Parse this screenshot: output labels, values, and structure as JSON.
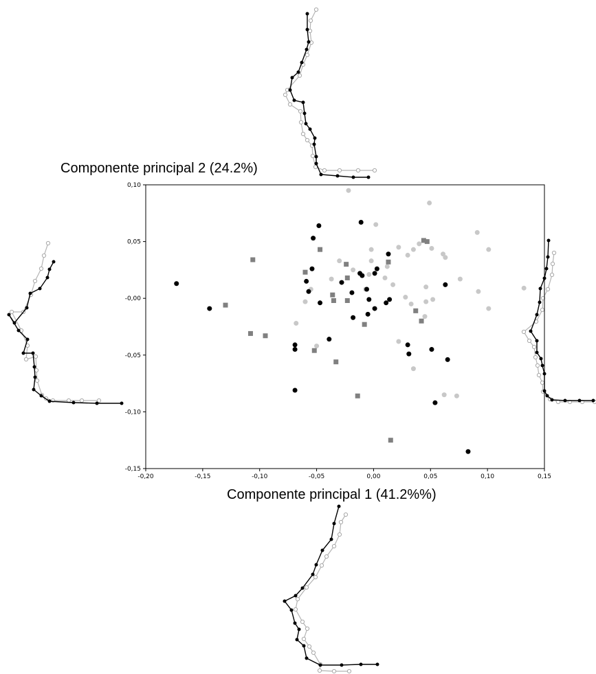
{
  "chart_data": {
    "type": "scatter",
    "title": "",
    "xlabel": "Componente principal 1 (41.2%%)",
    "ylabel": "Componente principal 2 (24.2%)",
    "xlim": [
      -0.2,
      0.15
    ],
    "ylim": [
      -0.15,
      0.1
    ],
    "xticks": [
      "-0,20",
      "-0,15",
      "-0,10",
      "-0,05",
      "0,00",
      "0,05",
      "0,10",
      "0,15"
    ],
    "yticks": [
      "0,10",
      "0,05",
      "-0,00",
      "-0,05",
      "-0,10",
      "-0,15"
    ],
    "xtick_values": [
      -0.2,
      -0.15,
      -0.1,
      -0.05,
      0.0,
      0.05,
      0.1,
      0.15
    ],
    "ytick_values": [
      0.1,
      0.05,
      0.0,
      -0.05,
      -0.1,
      -0.15
    ],
    "grid": false,
    "colors": {
      "black": "#000000",
      "dark_grey": "#808080",
      "light_grey": "#c8c8c8"
    },
    "series": [
      {
        "marker": "circle",
        "color": "#000000",
        "points": [
          [
            -0.173,
            0.013
          ],
          [
            -0.144,
            -0.009
          ],
          [
            -0.069,
            -0.041
          ],
          [
            -0.069,
            -0.045
          ],
          [
            -0.069,
            -0.081
          ],
          [
            -0.053,
            0.053
          ],
          [
            -0.048,
            0.064
          ],
          [
            -0.059,
            0.015
          ],
          [
            -0.054,
            0.026
          ],
          [
            -0.057,
            0.006
          ],
          [
            -0.047,
            -0.004
          ],
          [
            -0.039,
            -0.036
          ],
          [
            -0.028,
            0.014
          ],
          [
            -0.019,
            0.005
          ],
          [
            -0.018,
            -0.017
          ],
          [
            -0.012,
            0.022
          ],
          [
            -0.01,
            0.02
          ],
          [
            -0.011,
            0.067
          ],
          [
            -0.006,
            0.008
          ],
          [
            -0.004,
            -0.001
          ],
          [
            -0.005,
            -0.014
          ],
          [
            0.001,
            -0.009
          ],
          [
            0.001,
            0.022
          ],
          [
            0.003,
            0.026
          ],
          [
            0.011,
            -0.004
          ],
          [
            0.013,
            0.039
          ],
          [
            0.014,
            -0.001
          ],
          [
            0.03,
            -0.041
          ],
          [
            0.031,
            -0.049
          ],
          [
            0.051,
            -0.045
          ],
          [
            0.054,
            -0.092
          ],
          [
            0.063,
            0.012
          ],
          [
            0.065,
            -0.054
          ],
          [
            0.083,
            -0.135
          ]
        ]
      },
      {
        "marker": "square",
        "color": "#808080",
        "points": [
          [
            -0.13,
            -0.006
          ],
          [
            -0.108,
            -0.031
          ],
          [
            -0.106,
            0.034
          ],
          [
            -0.095,
            -0.033
          ],
          [
            -0.06,
            0.023
          ],
          [
            -0.052,
            -0.046
          ],
          [
            -0.047,
            0.043
          ],
          [
            -0.036,
            0.003
          ],
          [
            -0.035,
            -0.002
          ],
          [
            -0.033,
            -0.056
          ],
          [
            -0.024,
            0.03
          ],
          [
            -0.023,
            0.018
          ],
          [
            -0.023,
            -0.002
          ],
          [
            -0.014,
            -0.086
          ],
          [
            -0.008,
            -0.023
          ],
          [
            0.013,
            0.032
          ],
          [
            0.015,
            -0.125
          ],
          [
            0.037,
            -0.011
          ],
          [
            0.042,
            -0.02
          ],
          [
            0.044,
            0.051
          ],
          [
            0.047,
            0.05
          ]
        ]
      },
      {
        "marker": "circle",
        "color": "#c8c8c8",
        "points": [
          [
            -0.068,
            -0.022
          ],
          [
            -0.06,
            -0.003
          ],
          [
            -0.055,
            0.008
          ],
          [
            -0.05,
            -0.042
          ],
          [
            -0.037,
            0.017
          ],
          [
            -0.03,
            0.033
          ],
          [
            -0.022,
            0.095
          ],
          [
            -0.018,
            0.025
          ],
          [
            -0.007,
            0.008
          ],
          [
            -0.004,
            0.021
          ],
          [
            -0.002,
            0.033
          ],
          [
            -0.002,
            0.043
          ],
          [
            0.002,
            0.065
          ],
          [
            0.01,
            0.018
          ],
          [
            0.012,
            0.028
          ],
          [
            0.017,
            0.012
          ],
          [
            0.022,
            0.045
          ],
          [
            0.022,
            -0.038
          ],
          [
            0.028,
            0.001
          ],
          [
            0.03,
            0.038
          ],
          [
            0.033,
            -0.005
          ],
          [
            0.035,
            0.043
          ],
          [
            0.035,
            -0.062
          ],
          [
            0.04,
            0.048
          ],
          [
            0.045,
            -0.016
          ],
          [
            0.046,
            0.01
          ],
          [
            0.046,
            -0.003
          ],
          [
            0.049,
            0.084
          ],
          [
            0.051,
            0.044
          ],
          [
            0.052,
            -0.001
          ],
          [
            0.061,
            0.039
          ],
          [
            0.062,
            -0.085
          ],
          [
            0.063,
            0.036
          ],
          [
            0.073,
            -0.086
          ],
          [
            0.076,
            0.017
          ],
          [
            0.091,
            0.058
          ],
          [
            0.092,
            0.006
          ],
          [
            0.101,
            0.043
          ],
          [
            0.101,
            -0.009
          ],
          [
            0.132,
            0.009
          ]
        ]
      }
    ]
  },
  "shape_outlines": {
    "top": {
      "black": [
        [
          447,
          20
        ],
        [
          447,
          43
        ],
        [
          449,
          61
        ],
        [
          446,
          72
        ],
        [
          439,
          91
        ],
        [
          434,
          105
        ],
        [
          425,
          113
        ],
        [
          422,
          131
        ],
        [
          428,
          146
        ],
        [
          441,
          149
        ],
        [
          443,
          165
        ],
        [
          445,
          180
        ],
        [
          451,
          188
        ],
        [
          458,
          201
        ],
        [
          457,
          210
        ],
        [
          460,
          228
        ],
        [
          460,
          238
        ],
        [
          467,
          254
        ],
        [
          491,
          256
        ],
        [
          514,
          258
        ],
        [
          536,
          258
        ]
      ],
      "grey": [
        [
          460,
          14
        ],
        [
          452,
          30
        ],
        [
          451,
          45
        ],
        [
          453,
          62
        ],
        [
          447,
          80
        ],
        [
          441,
          94
        ],
        [
          436,
          110
        ],
        [
          418,
          131
        ],
        [
          415,
          138
        ],
        [
          422,
          152
        ],
        [
          437,
          162
        ],
        [
          438,
          178
        ],
        [
          441,
          195
        ],
        [
          447,
          204
        ],
        [
          454,
          212
        ],
        [
          455,
          227
        ],
        [
          459,
          243
        ],
        [
          472,
          248
        ],
        [
          494,
          248
        ],
        [
          521,
          248
        ],
        [
          545,
          248
        ]
      ]
    },
    "left": {
      "black": [
        [
          78,
          381
        ],
        [
          72,
          392
        ],
        [
          69,
          404
        ],
        [
          58,
          420
        ],
        [
          44,
          427
        ],
        [
          39,
          448
        ],
        [
          21,
          470
        ],
        [
          13,
          458
        ],
        [
          27,
          481
        ],
        [
          40,
          494
        ],
        [
          34,
          514
        ],
        [
          48,
          514
        ],
        [
          50,
          534
        ],
        [
          51,
          549
        ],
        [
          49,
          567
        ],
        [
          60,
          576
        ],
        [
          72,
          584
        ],
        [
          107,
          586
        ],
        [
          141,
          587
        ],
        [
          177,
          587
        ]
      ],
      "grey": [
        [
          70,
          354
        ],
        [
          64,
          372
        ],
        [
          60,
          391
        ],
        [
          51,
          409
        ],
        [
          45,
          429
        ],
        [
          34,
          454
        ],
        [
          17,
          454
        ],
        [
          31,
          481
        ],
        [
          40,
          503
        ],
        [
          38,
          523
        ],
        [
          52,
          519
        ],
        [
          53,
          539
        ],
        [
          54,
          554
        ],
        [
          61,
          575
        ],
        [
          67,
          580
        ],
        [
          77,
          583
        ],
        [
          100,
          583
        ],
        [
          119,
          583
        ],
        [
          144,
          583
        ]
      ]
    },
    "right": {
      "black": [
        [
          798,
          350
        ],
        [
          797,
          374
        ],
        [
          795,
          391
        ],
        [
          792,
          405
        ],
        [
          786,
          420
        ],
        [
          785,
          440
        ],
        [
          781,
          458
        ],
        [
          772,
          482
        ],
        [
          781,
          496
        ],
        [
          781,
          513
        ],
        [
          787,
          522
        ],
        [
          789,
          532
        ],
        [
          792,
          544
        ],
        [
          792,
          569
        ],
        [
          796,
          576
        ],
        [
          803,
          582
        ],
        [
          822,
          583
        ],
        [
          843,
          583
        ],
        [
          863,
          583
        ]
      ],
      "grey": [
        [
          806,
          368
        ],
        [
          804,
          384
        ],
        [
          803,
          400
        ],
        [
          797,
          421
        ],
        [
          790,
          434
        ],
        [
          789,
          451
        ],
        [
          780,
          468
        ],
        [
          762,
          483
        ],
        [
          770,
          496
        ],
        [
          777,
          505
        ],
        [
          779,
          520
        ],
        [
          782,
          532
        ],
        [
          784,
          546
        ],
        [
          789,
          557
        ],
        [
          790,
          570
        ],
        [
          800,
          581
        ],
        [
          812,
          585
        ],
        [
          829,
          585
        ],
        [
          847,
          585
        ],
        [
          865,
          585
        ]
      ]
    },
    "bottom": {
      "black": [
        [
          493,
          737
        ],
        [
          486,
          762
        ],
        [
          482,
          785
        ],
        [
          469,
          801
        ],
        [
          460,
          822
        ],
        [
          455,
          836
        ],
        [
          440,
          856
        ],
        [
          430,
          867
        ],
        [
          414,
          875
        ],
        [
          424,
          888
        ],
        [
          429,
          907
        ],
        [
          435,
          916
        ],
        [
          432,
          931
        ],
        [
          442,
          940
        ],
        [
          446,
          958
        ],
        [
          466,
          968
        ],
        [
          497,
          968
        ],
        [
          525,
          967
        ],
        [
          549,
          967
        ]
      ],
      "grey": [
        [
          503,
          749
        ],
        [
          496,
          760
        ],
        [
          494,
          778
        ],
        [
          486,
          795
        ],
        [
          475,
          810
        ],
        [
          468,
          823
        ],
        [
          459,
          840
        ],
        [
          446,
          855
        ],
        [
          433,
          872
        ],
        [
          430,
          887
        ],
        [
          440,
          905
        ],
        [
          447,
          915
        ],
        [
          442,
          930
        ],
        [
          450,
          941
        ],
        [
          456,
          950
        ],
        [
          466,
          967
        ],
        [
          465,
          976
        ],
        [
          486,
          977
        ],
        [
          508,
          977
        ]
      ]
    }
  }
}
